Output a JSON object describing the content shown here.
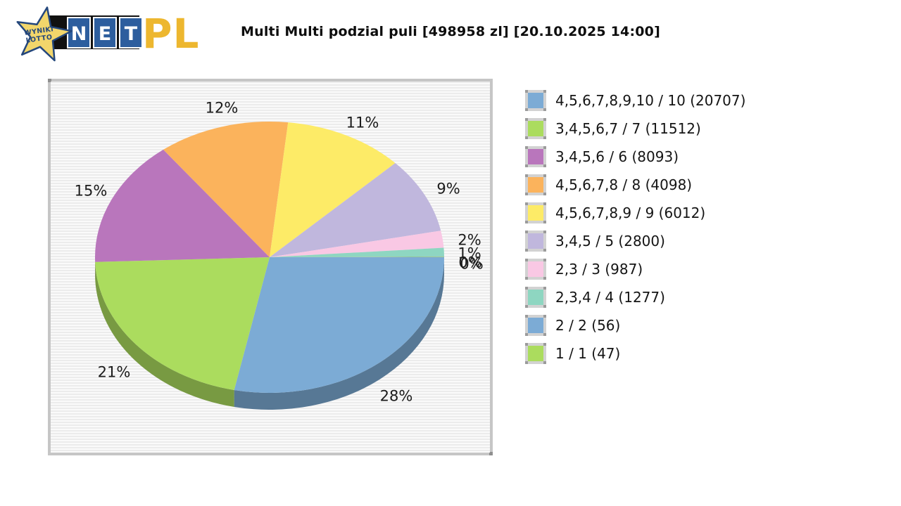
{
  "header": {
    "title": "Multi Multi podzial puli [498958 zl] [20.10.2025 14:00]",
    "logo": {
      "star_text_line1": "WYNIKI",
      "star_text_line2": "LOTTO",
      "tiles": [
        "N",
        "E",
        "T"
      ],
      "suffix": "PL"
    }
  },
  "chart_data": {
    "type": "pie",
    "title": "Multi Multi podzial puli [498958 zl] [20.10.2025 14:00]",
    "effect": "3d",
    "legend_position": "right",
    "percent_label_suffix": "%",
    "slices": [
      {
        "label": "4,5,6,7,8,9,10 / 10",
        "winners": 20707,
        "percent": 28,
        "color": "#7cabd5"
      },
      {
        "label": "3,4,5,6,7 / 7",
        "winners": 11512,
        "percent": 21,
        "color": "#abdc5e"
      },
      {
        "label": "3,4,5,6 / 6",
        "winners": 8093,
        "percent": 15,
        "color": "#b976bc"
      },
      {
        "label": "4,5,6,7,8 / 8",
        "winners": 4098,
        "percent": 12,
        "color": "#fbb35c"
      },
      {
        "label": "4,5,6,7,8,9 / 9",
        "winners": 6012,
        "percent": 11,
        "color": "#fdeb67"
      },
      {
        "label": "3,4,5 / 5",
        "winners": 2800,
        "percent": 9,
        "color": "#c0b7dd"
      },
      {
        "label": "2,3 / 3",
        "winners": 987,
        "percent": 2,
        "color": "#f9c8e4"
      },
      {
        "label": "2,3,4 / 4",
        "winners": 1277,
        "percent": 1,
        "color": "#8ed6c1"
      },
      {
        "label": "2 / 2",
        "winners": 56,
        "percent": 0,
        "color": "#7cabd5"
      },
      {
        "label": "1 / 1",
        "winners": 47,
        "percent": 0,
        "color": "#abdc5e"
      }
    ]
  }
}
